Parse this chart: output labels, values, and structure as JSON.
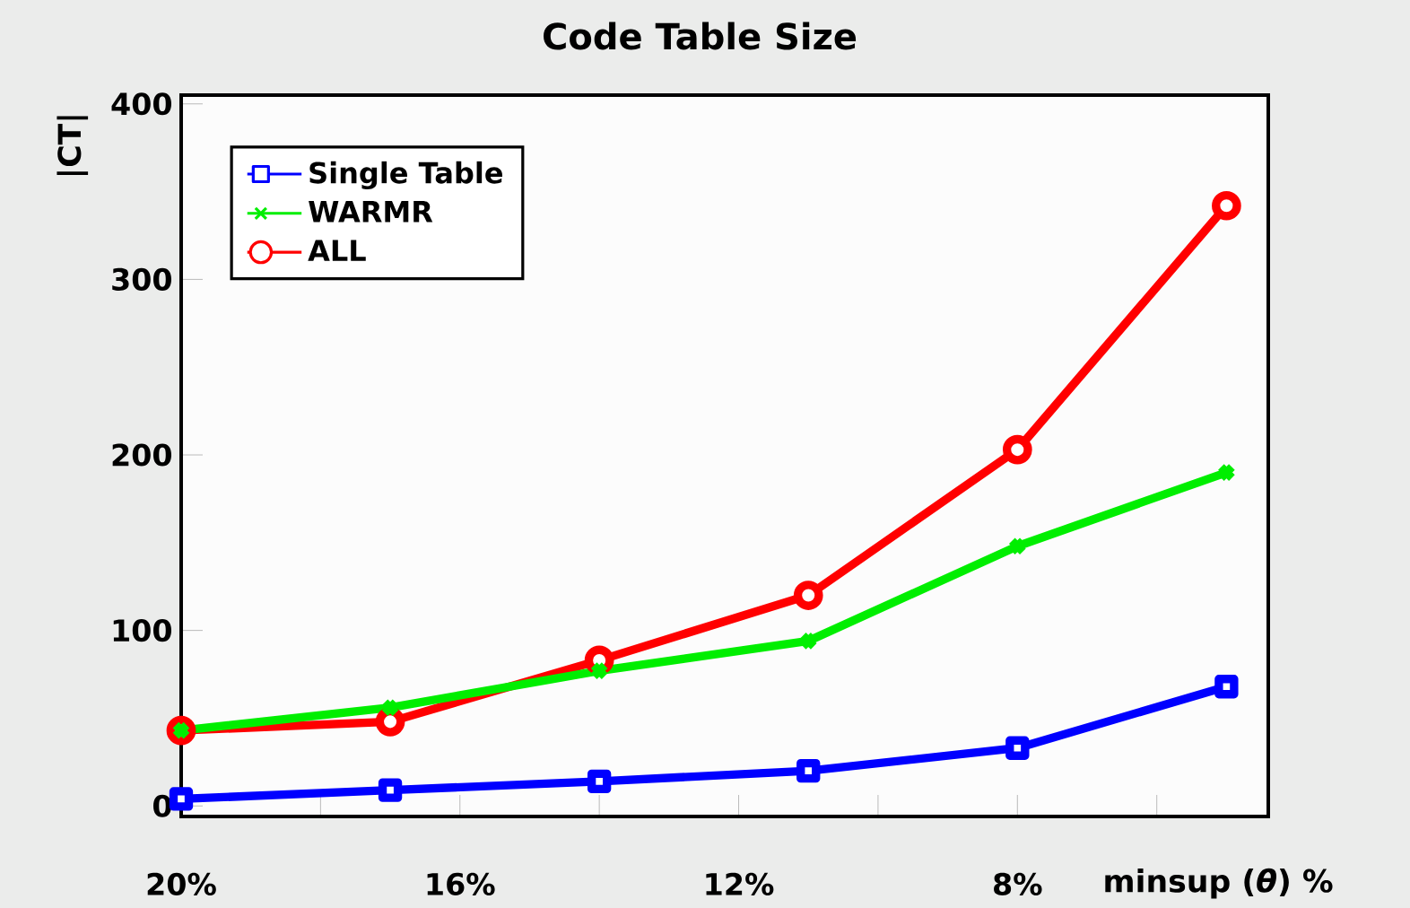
{
  "chart_data": {
    "type": "line",
    "title": "Code Table Size",
    "xlabel": "minsup (*θ*) %",
    "ylabel": "|CT|",
    "x": [
      20,
      17,
      14,
      11,
      8,
      5
    ],
    "series": [
      {
        "name": "Single Table",
        "color": "#0000ff",
        "marker": "square",
        "values": [
          4,
          9,
          14,
          20,
          33,
          68
        ]
      },
      {
        "name": "WARMR",
        "color": "#00ee00",
        "marker": "cross",
        "values": [
          43,
          56,
          77,
          94,
          148,
          190
        ]
      },
      {
        "name": "ALL",
        "color": "#ff0000",
        "marker": "circle",
        "values": [
          43,
          48,
          83,
          120,
          203,
          342
        ]
      }
    ],
    "xlim": [
      20,
      4.4
    ],
    "ylim": [
      -6,
      405
    ],
    "xticks": [
      {
        "value": 20,
        "label": "20%"
      },
      {
        "value": 18,
        "label": null
      },
      {
        "value": 16,
        "label": "16%"
      },
      {
        "value": 14,
        "label": null
      },
      {
        "value": 12,
        "label": "12%"
      },
      {
        "value": 10,
        "label": null
      },
      {
        "value": 8,
        "label": "8%"
      },
      {
        "value": 6,
        "label": null
      }
    ],
    "yticks": [
      0,
      100,
      200,
      300,
      400
    ],
    "grid": false,
    "legend": "top left",
    "line_style": "solid"
  }
}
